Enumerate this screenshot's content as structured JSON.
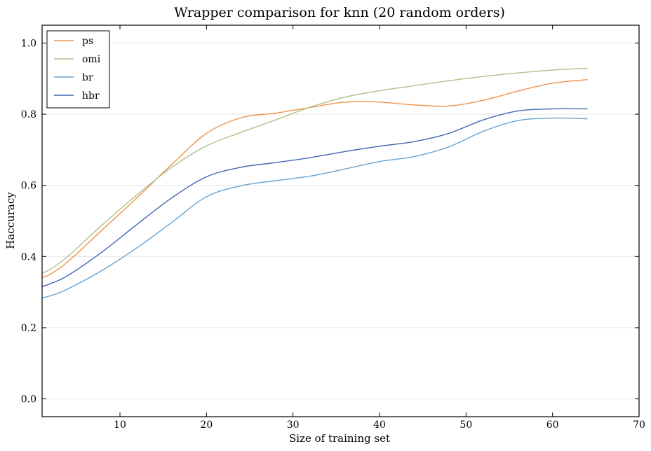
{
  "chart_data": {
    "type": "line",
    "title": "Wrapper comparison for knn (20 random orders)",
    "xlabel": "Size of training set",
    "ylabel": "Haccuracy",
    "xlim": [
      1,
      70
    ],
    "ylim": [
      -0.05,
      1.05
    ],
    "xticks": [
      10,
      20,
      30,
      40,
      50,
      60,
      70
    ],
    "yticks": [
      0.0,
      0.2,
      0.4,
      0.6,
      0.8,
      1.0
    ],
    "xtick_labels": [
      "10",
      "20",
      "30",
      "40",
      "50",
      "60",
      "70"
    ],
    "ytick_labels": [
      "0.0",
      "0.2",
      "0.4",
      "0.6",
      "0.8",
      "1.0"
    ],
    "grid": "horizontal",
    "legend_position": "top-left",
    "x": [
      1,
      2,
      4,
      8,
      12,
      16,
      20,
      24,
      28,
      32,
      36,
      40,
      44,
      48,
      52,
      56,
      60,
      64
    ],
    "series": [
      {
        "name": "ps",
        "color": "#f0924a",
        "values": [
          0.341,
          0.351,
          0.386,
          0.476,
          0.566,
          0.659,
          0.746,
          0.79,
          0.803,
          0.819,
          0.834,
          0.834,
          0.826,
          0.823,
          0.839,
          0.865,
          0.887,
          0.897
        ]
      },
      {
        "name": "omi",
        "color": "#b0c08a",
        "values": [
          0.353,
          0.365,
          0.401,
          0.49,
          0.574,
          0.651,
          0.711,
          0.749,
          0.784,
          0.82,
          0.848,
          0.866,
          0.88,
          0.894,
          0.906,
          0.916,
          0.924,
          0.929
        ]
      },
      {
        "name": "br",
        "color": "#6aa3cf",
        "values": [
          0.284,
          0.29,
          0.309,
          0.362,
          0.425,
          0.496,
          0.568,
          0.599,
          0.613,
          0.626,
          0.646,
          0.667,
          0.681,
          0.708,
          0.752,
          0.782,
          0.789,
          0.787
        ]
      },
      {
        "name": "hbr",
        "color": "#4466b3",
        "values": [
          0.316,
          0.324,
          0.347,
          0.414,
          0.491,
          0.565,
          0.624,
          0.651,
          0.664,
          0.678,
          0.695,
          0.71,
          0.723,
          0.746,
          0.784,
          0.809,
          0.815,
          0.815
        ]
      }
    ]
  }
}
